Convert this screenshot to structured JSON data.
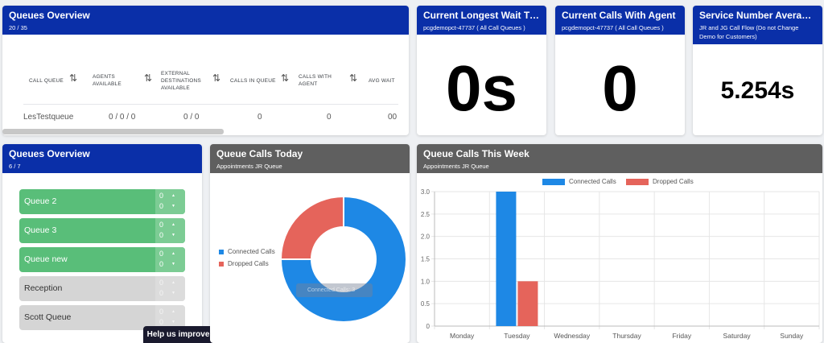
{
  "queues_overview_top": {
    "title": "Queues Overview",
    "subtitle": "20 / 35",
    "columns": [
      {
        "label": "CALL QUEUE"
      },
      {
        "label": "AGENTS AVAILABLE"
      },
      {
        "label": "EXTERNAL DESTINATIONS AVAILABLE"
      },
      {
        "label": "CALLS IN QUEUE"
      },
      {
        "label": "CALLS WITH AGENT"
      },
      {
        "label": "AVG WAIT"
      }
    ],
    "row": {
      "queue": "LesTestqueue",
      "agents": "0 / 0 / 0",
      "external": "0 / 0",
      "in_queue": "0",
      "with_agent": "0",
      "avg_wait": "00"
    }
  },
  "longest_wait": {
    "title": "Current Longest Wait Time",
    "subtitle": "pcgdemopct-47737 ( All Call Queues )",
    "value": "0s"
  },
  "calls_with_agent": {
    "title": "Current Calls With Agent",
    "subtitle": "pcgdemopct-47737 ( All Call Queues )",
    "value": "0"
  },
  "service_number": {
    "title": "Service Number Average W...",
    "subtitle": "JR and JG Call Flow (Do not Change Demo for Customers)",
    "value": "5.254s"
  },
  "queues_overview_list": {
    "title": "Queues Overview",
    "subtitle": "6 / 7",
    "items": [
      {
        "name": "Queue 2",
        "a": "0",
        "b": "0",
        "status": "active"
      },
      {
        "name": "Queue 3",
        "a": "0",
        "b": "0",
        "status": "active"
      },
      {
        "name": "Queue new",
        "a": "0",
        "b": "0",
        "status": "active"
      },
      {
        "name": "Reception",
        "a": "0",
        "b": "0",
        "status": "inactive"
      },
      {
        "name": "Scott Queue",
        "a": "0",
        "b": "0",
        "status": "inactive"
      }
    ]
  },
  "help_button": {
    "label": "Help us improve"
  },
  "colors": {
    "connected": "#1e88e5",
    "dropped": "#e5645b",
    "header_blue": "#0a2fa8",
    "header_grey": "#5f5f5f"
  },
  "chart_data": [
    {
      "type": "pie",
      "title": "Queue Calls Today",
      "subtitle": "Appointments JR Queue",
      "categories": [
        "Connected Calls",
        "Dropped Calls"
      ],
      "values": [
        3,
        1
      ],
      "tooltip": "Connected Calls: 3"
    },
    {
      "type": "bar",
      "title": "Queue Calls This Week",
      "subtitle": "Appointments JR Queue",
      "categories": [
        "Monday",
        "Tuesday",
        "Wednesday",
        "Thursday",
        "Friday",
        "Saturday",
        "Sunday"
      ],
      "series": [
        {
          "name": "Connected Calls",
          "values": [
            0,
            3,
            0,
            0,
            0,
            0,
            0
          ]
        },
        {
          "name": "Dropped Calls",
          "values": [
            0,
            1,
            0,
            0,
            0,
            0,
            0
          ]
        }
      ],
      "ylim": [
        0,
        3
      ],
      "yticks": [
        "0",
        "0.5",
        "1.0",
        "1.5",
        "2.0",
        "2.5",
        "3.0"
      ],
      "legend": "top"
    }
  ]
}
